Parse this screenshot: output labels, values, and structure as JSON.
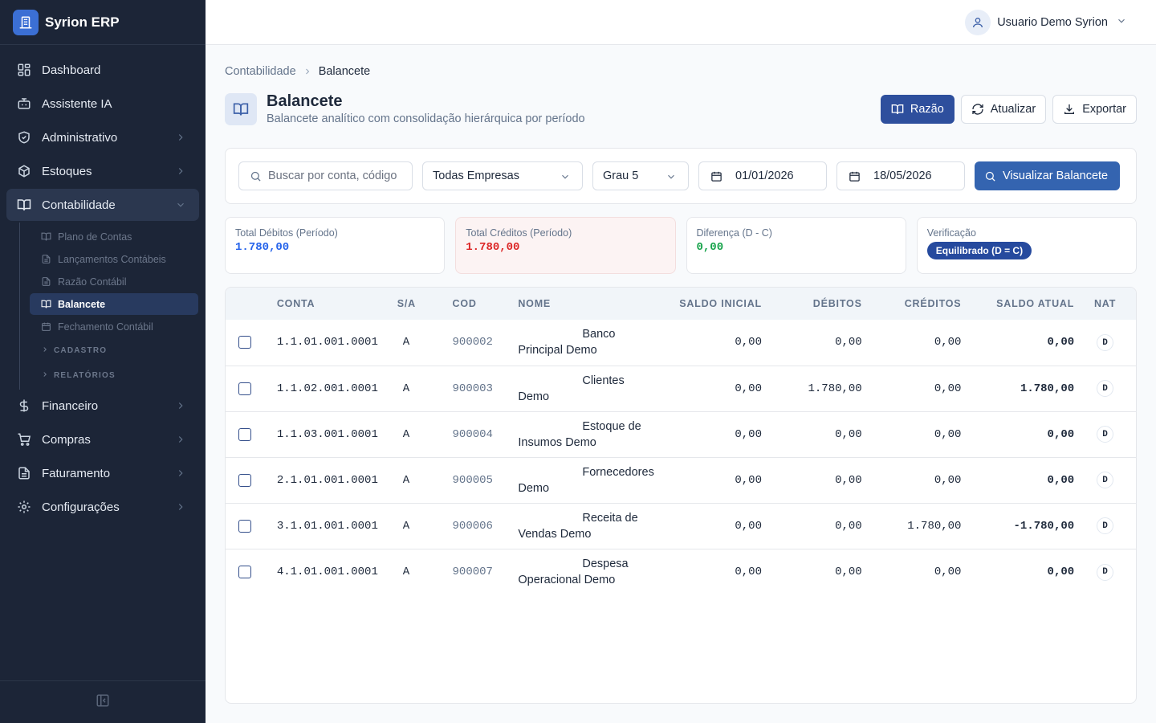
{
  "app": {
    "name": "Syrion ERP"
  },
  "sidebar": {
    "items": [
      {
        "label": "Dashboard"
      },
      {
        "label": "Assistente IA"
      },
      {
        "label": "Administrativo"
      },
      {
        "label": "Estoques"
      },
      {
        "label": "Contabilidade"
      },
      {
        "label": "Financeiro"
      },
      {
        "label": "Compras"
      },
      {
        "label": "Faturamento"
      },
      {
        "label": "Configurações"
      }
    ],
    "contabilidade_sub": [
      {
        "label": "Plano de Contas"
      },
      {
        "label": "Lançamentos Contábeis"
      },
      {
        "label": "Razão Contábil"
      },
      {
        "label": "Balancete"
      },
      {
        "label": "Fechamento Contábil"
      }
    ],
    "groups": [
      {
        "label": "CADASTRO"
      },
      {
        "label": "RELATÓRIOS"
      }
    ]
  },
  "header": {
    "user_name": "Usuario Demo Syrion"
  },
  "breadcrumb": {
    "parent": "Contabilidade",
    "current": "Balancete"
  },
  "page": {
    "title": "Balancete",
    "subtitle": "Balancete analítico com consolidação hierárquica por período"
  },
  "actions": {
    "razao": "Razão",
    "atualizar": "Atualizar",
    "exportar": "Exportar"
  },
  "filters": {
    "search_placeholder": "Buscar por conta, código",
    "empresa": "Todas Empresas",
    "grau": "Grau 5",
    "data_inicio": "01/01/2026",
    "data_fim": "18/05/2026",
    "view_button": "Visualizar Balancete"
  },
  "summary": {
    "debitos": {
      "label": "Total Débitos (Período)",
      "value": "1.780,00",
      "color": "#2563eb"
    },
    "creditos": {
      "label": "Total Créditos (Período)",
      "value": "1.780,00",
      "color": "#dc2626"
    },
    "diferenca": {
      "label": "Diferença (D - C)",
      "value": "0,00",
      "color": "#16a34a"
    },
    "verificacao": {
      "label": "Verificação",
      "badge": "Equilibrado (D = C)"
    }
  },
  "table": {
    "headers": {
      "conta": "CONTA",
      "sa": "S/A",
      "cod": "COD",
      "nome": "NOME",
      "saldo_inicial": "SALDO INICIAL",
      "debitos": "DÉBITOS",
      "creditos": "CRÉDITOS",
      "saldo_atual": "SALDO ATUAL",
      "nat": "NAT"
    },
    "rows": [
      {
        "conta": "1.1.01.001.0001",
        "sa": "A",
        "cod": "900002",
        "nome": "Banco Principal Demo",
        "saldo_inicial": "0,00",
        "debitos": "0,00",
        "creditos": "0,00",
        "saldo_atual": "0,00",
        "nat": "D"
      },
      {
        "conta": "1.1.02.001.0001",
        "sa": "A",
        "cod": "900003",
        "nome": "Clientes Demo",
        "saldo_inicial": "0,00",
        "debitos": "1.780,00",
        "creditos": "0,00",
        "saldo_atual": "1.780,00",
        "nat": "D"
      },
      {
        "conta": "1.1.03.001.0001",
        "sa": "A",
        "cod": "900004",
        "nome": "Estoque de Insumos Demo",
        "saldo_inicial": "0,00",
        "debitos": "0,00",
        "creditos": "0,00",
        "saldo_atual": "0,00",
        "nat": "D"
      },
      {
        "conta": "2.1.01.001.0001",
        "sa": "A",
        "cod": "900005",
        "nome": "Fornecedores Demo",
        "saldo_inicial": "0,00",
        "debitos": "0,00",
        "creditos": "0,00",
        "saldo_atual": "0,00",
        "nat": "D"
      },
      {
        "conta": "3.1.01.001.0001",
        "sa": "A",
        "cod": "900006",
        "nome": "Receita de Vendas Demo",
        "saldo_inicial": "0,00",
        "debitos": "0,00",
        "creditos": "1.780,00",
        "saldo_atual": "-1.780,00",
        "nat": "D"
      },
      {
        "conta": "4.1.01.001.0001",
        "sa": "A",
        "cod": "900007",
        "nome": "Despesa Operacional Demo",
        "saldo_inicial": "0,00",
        "debitos": "0,00",
        "creditos": "0,00",
        "saldo_atual": "0,00",
        "nat": "D"
      }
    ]
  }
}
